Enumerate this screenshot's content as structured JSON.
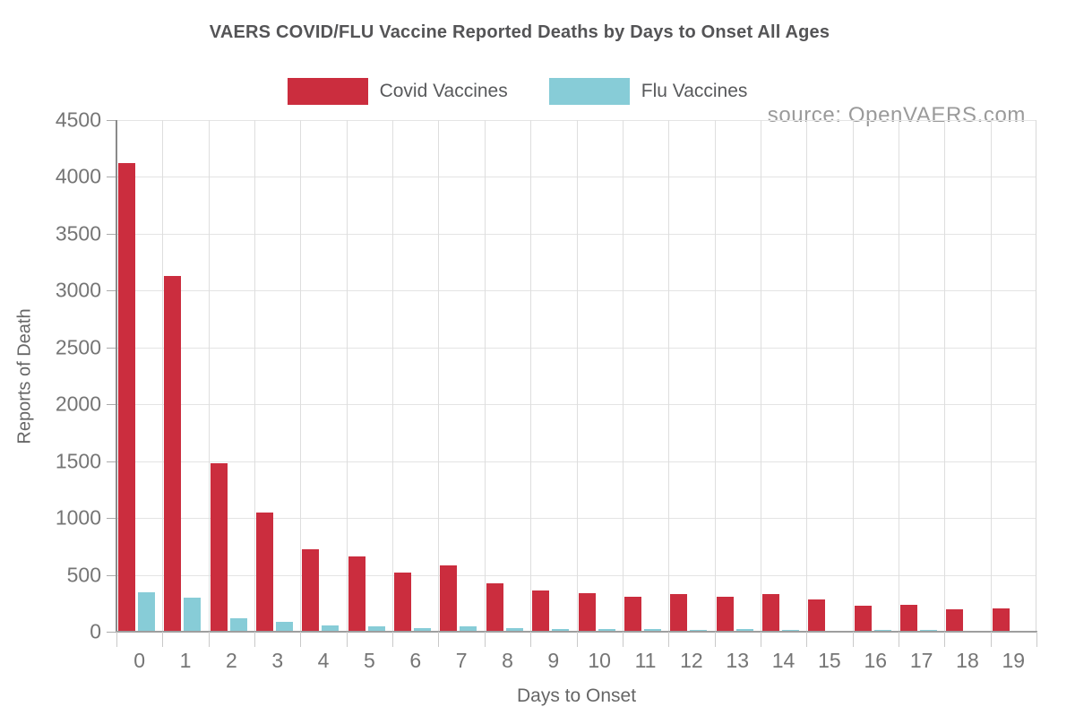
{
  "title": "VAERS COVID/FLU Vaccine Reported Deaths by Days to Onset All Ages",
  "source_note": "source: OpenVAERS.com",
  "legend": {
    "items": [
      {
        "label": "Covid Vaccines",
        "color": "#cb2d3e"
      },
      {
        "label": "Flu Vaccines",
        "color": "#87ccd7"
      }
    ]
  },
  "axes": {
    "x_title": "Days to Onset",
    "y_title": "Reports of Death"
  },
  "chart_data": {
    "type": "bar",
    "title": "VAERS COVID/FLU Vaccine Reported Deaths by Days to Onset All Ages",
    "xlabel": "Days to Onset",
    "ylabel": "Reports of Death",
    "categories": [
      "0",
      "1",
      "2",
      "3",
      "4",
      "5",
      "6",
      "7",
      "8",
      "9",
      "10",
      "11",
      "12",
      "13",
      "14",
      "15",
      "16",
      "17",
      "18",
      "19"
    ],
    "series": [
      {
        "name": "Covid Vaccines",
        "color": "#cb2d3e",
        "values": [
          4120,
          3130,
          1480,
          1050,
          725,
          665,
          520,
          580,
          425,
          360,
          340,
          305,
          335,
          305,
          330,
          280,
          230,
          235,
          195,
          205
        ]
      },
      {
        "name": "Flu Vaccines",
        "color": "#87ccd7",
        "values": [
          345,
          300,
          115,
          90,
          55,
          45,
          35,
          45,
          30,
          25,
          25,
          20,
          18,
          20,
          15,
          10,
          15,
          12,
          10,
          8
        ]
      }
    ],
    "ylim": [
      0,
      4500
    ],
    "ytick_step": 500,
    "grid": true,
    "legend_position": "top",
    "annotations": [
      "source: OpenVAERS.com"
    ]
  }
}
